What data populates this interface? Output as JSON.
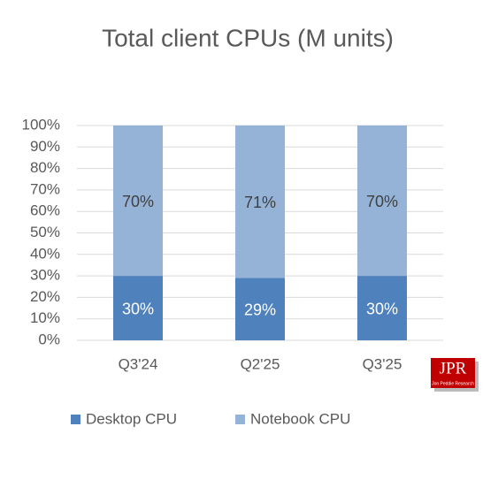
{
  "chart_data": {
    "type": "stacked_bar",
    "title": "Total client CPUs (M units)",
    "categories": [
      "Q3'24",
      "Q2'25",
      "Q3'25"
    ],
    "series": [
      {
        "name": "Desktop CPU",
        "color": "#4f81bd",
        "values": [
          30,
          29,
          30
        ],
        "value_labels": [
          "30%",
          "29%",
          "30%"
        ]
      },
      {
        "name": "Notebook CPU",
        "color": "#95b3d7",
        "values": [
          70,
          71,
          70
        ],
        "value_labels": [
          "70%",
          "71%",
          "70%"
        ]
      }
    ],
    "ylim": [
      0,
      100
    ],
    "yticks": [
      {
        "value": 0,
        "label": "0%"
      },
      {
        "value": 10,
        "label": "10%"
      },
      {
        "value": 20,
        "label": "20%"
      },
      {
        "value": 30,
        "label": "30%"
      },
      {
        "value": 40,
        "label": "40%"
      },
      {
        "value": 50,
        "label": "50%"
      },
      {
        "value": 60,
        "label": "60%"
      },
      {
        "value": 70,
        "label": "70%"
      },
      {
        "value": 80,
        "label": "80%"
      },
      {
        "value": 90,
        "label": "90%"
      },
      {
        "value": 100,
        "label": "100%"
      }
    ],
    "grid": true,
    "legend": "bottom",
    "logo_text": "JPR",
    "logo_subtext": "Jon Peddie Research"
  }
}
